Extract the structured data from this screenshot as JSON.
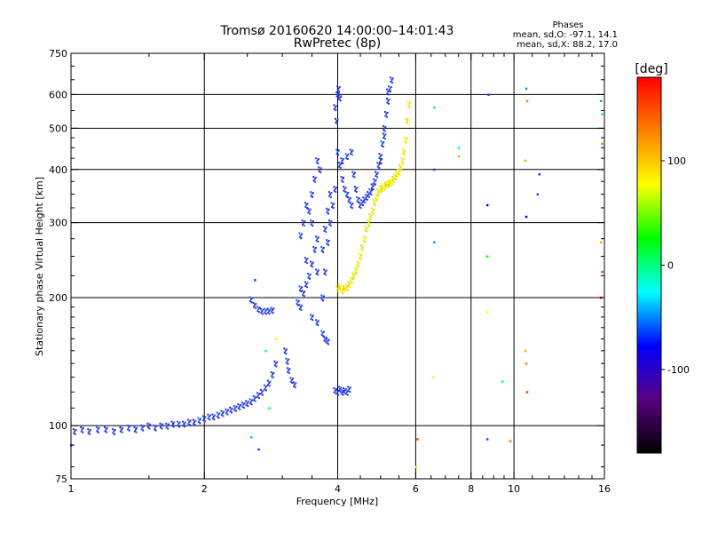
{
  "chart_data": {
    "type": "scatter",
    "title": "Tromsø 20160620 14:00:00–14:01:43",
    "subtitle": "RwPretec (8p)",
    "xlabel": "Frequency [MHz]",
    "ylabel": "Stationary phase Virtual Height [km]",
    "x_scale": "log",
    "y_scale": "log",
    "xlim": [
      1,
      16
    ],
    "ylim": [
      75,
      750
    ],
    "xticks": [
      1,
      2,
      4,
      6,
      8,
      10,
      16
    ],
    "yticks": [
      75,
      100,
      200,
      300,
      400,
      500,
      600,
      750
    ],
    "grid": true,
    "info": {
      "heading": "Phases",
      "line1": "mean, sd,O: -97.1, 14.1",
      "line2": "mean, sd,X:  88.2, 17.0"
    },
    "colorbar": {
      "label": "[deg]",
      "range": [
        -180,
        180
      ],
      "ticks": [
        100,
        0,
        -100
      ],
      "tick_labels": [
        "100",
        "0",
        "-100"
      ],
      "colors": [
        "#000000",
        "#5a0082",
        "#0000ff",
        "#00ffff",
        "#00ff00",
        "#ffff00",
        "#ff8000",
        "#ff0000"
      ]
    },
    "series": [
      {
        "mode": "O",
        "color": "#1a2fe0",
        "points": [
          [
            1.02,
            97
          ],
          [
            1.06,
            98
          ],
          [
            1.1,
            97
          ],
          [
            1.15,
            98
          ],
          [
            1.2,
            98
          ],
          [
            1.25,
            97
          ],
          [
            1.3,
            98
          ],
          [
            1.35,
            99
          ],
          [
            1.4,
            98
          ],
          [
            1.45,
            99
          ],
          [
            1.5,
            100
          ],
          [
            1.55,
            99
          ],
          [
            1.6,
            100
          ],
          [
            1.65,
            100
          ],
          [
            1.7,
            101
          ],
          [
            1.75,
            101
          ],
          [
            1.8,
            101
          ],
          [
            1.85,
            102
          ],
          [
            1.9,
            102
          ],
          [
            1.95,
            103
          ],
          [
            2.0,
            104
          ],
          [
            2.05,
            105
          ],
          [
            2.1,
            105
          ],
          [
            2.15,
            106
          ],
          [
            2.2,
            107
          ],
          [
            2.25,
            108
          ],
          [
            2.3,
            109
          ],
          [
            2.35,
            110
          ],
          [
            2.4,
            111
          ],
          [
            2.45,
            112
          ],
          [
            2.5,
            113
          ],
          [
            2.55,
            114
          ],
          [
            2.6,
            116
          ],
          [
            2.65,
            118
          ],
          [
            2.7,
            120
          ],
          [
            2.75,
            123
          ],
          [
            2.8,
            126
          ],
          [
            2.85,
            132
          ],
          [
            2.9,
            140
          ],
          [
            2.55,
            198
          ],
          [
            2.6,
            192
          ],
          [
            2.65,
            188
          ],
          [
            2.7,
            186
          ],
          [
            2.75,
            186
          ],
          [
            2.8,
            186
          ],
          [
            2.85,
            187
          ],
          [
            3.05,
            150
          ],
          [
            3.08,
            142
          ],
          [
            3.1,
            135
          ],
          [
            3.15,
            128
          ],
          [
            3.2,
            125
          ],
          [
            3.25,
            195
          ],
          [
            3.3,
            190
          ],
          [
            3.35,
            205
          ],
          [
            3.4,
            215
          ],
          [
            3.45,
            225
          ],
          [
            3.5,
            240
          ],
          [
            3.55,
            260
          ],
          [
            3.6,
            275
          ],
          [
            3.3,
            280
          ],
          [
            3.35,
            300
          ],
          [
            3.4,
            330
          ],
          [
            3.45,
            320
          ],
          [
            3.5,
            350
          ],
          [
            3.55,
            380
          ],
          [
            3.6,
            420
          ],
          [
            3.65,
            400
          ],
          [
            3.3,
            210
          ],
          [
            3.4,
            245
          ],
          [
            3.5,
            300
          ],
          [
            3.6,
            230
          ],
          [
            3.7,
            260
          ],
          [
            3.75,
            290
          ],
          [
            3.8,
            320
          ],
          [
            3.85,
            350
          ],
          [
            3.7,
            200
          ],
          [
            3.75,
            230
          ],
          [
            3.8,
            270
          ],
          [
            3.85,
            300
          ],
          [
            3.9,
            330
          ],
          [
            3.95,
            360
          ],
          [
            3.5,
            180
          ],
          [
            3.6,
            175
          ],
          [
            3.7,
            165
          ],
          [
            3.75,
            160
          ],
          [
            3.8,
            158
          ],
          [
            3.95,
            560
          ],
          [
            4.0,
            600
          ],
          [
            4.02,
            620
          ],
          [
            4.05,
            590
          ],
          [
            3.98,
            520
          ],
          [
            4.0,
            440
          ],
          [
            4.05,
            410
          ],
          [
            4.1,
            380
          ],
          [
            4.15,
            360
          ],
          [
            4.2,
            350
          ],
          [
            4.25,
            340
          ],
          [
            4.3,
            330
          ],
          [
            4.1,
            420
          ],
          [
            4.2,
            430
          ],
          [
            4.3,
            440
          ],
          [
            4.35,
            390
          ],
          [
            4.4,
            360
          ],
          [
            4.45,
            340
          ],
          [
            4.5,
            330
          ],
          [
            4.55,
            335
          ],
          [
            4.6,
            340
          ],
          [
            4.65,
            345
          ],
          [
            4.7,
            350
          ],
          [
            4.75,
            355
          ],
          [
            4.8,
            365
          ],
          [
            4.85,
            375
          ],
          [
            4.9,
            390
          ],
          [
            4.95,
            410
          ],
          [
            5.0,
            430
          ],
          [
            5.05,
            460
          ],
          [
            5.1,
            500
          ],
          [
            5.15,
            540
          ],
          [
            5.2,
            580
          ],
          [
            5.25,
            620
          ],
          [
            5.3,
            650
          ],
          [
            5.2,
            610
          ],
          [
            5.1,
            480
          ],
          [
            5.0,
            420
          ],
          [
            3.95,
            121
          ],
          [
            4.0,
            120
          ],
          [
            4.05,
            122
          ],
          [
            4.1,
            120
          ],
          [
            4.15,
            121
          ],
          [
            4.2,
            120
          ],
          [
            4.25,
            122
          ]
        ]
      },
      {
        "mode": "X",
        "color": "#f0ef10",
        "points": [
          [
            4.0,
            210
          ],
          [
            4.05,
            212
          ],
          [
            4.1,
            208
          ],
          [
            4.15,
            210
          ],
          [
            4.2,
            212
          ],
          [
            4.25,
            215
          ],
          [
            4.3,
            220
          ],
          [
            4.35,
            225
          ],
          [
            4.4,
            232
          ],
          [
            4.45,
            240
          ],
          [
            4.5,
            250
          ],
          [
            4.55,
            262
          ],
          [
            4.6,
            275
          ],
          [
            4.65,
            290
          ],
          [
            4.7,
            300
          ],
          [
            4.75,
            310
          ],
          [
            4.8,
            320
          ],
          [
            4.85,
            335
          ],
          [
            4.9,
            345
          ],
          [
            4.95,
            355
          ],
          [
            5.0,
            360
          ],
          [
            5.05,
            362
          ],
          [
            5.1,
            365
          ],
          [
            5.15,
            368
          ],
          [
            5.2,
            370
          ],
          [
            5.25,
            372
          ],
          [
            5.3,
            375
          ],
          [
            5.35,
            380
          ],
          [
            5.4,
            385
          ],
          [
            5.45,
            390
          ],
          [
            5.5,
            395
          ],
          [
            5.55,
            405
          ],
          [
            5.6,
            420
          ],
          [
            5.65,
            440
          ],
          [
            5.7,
            470
          ],
          [
            5.75,
            520
          ],
          [
            5.8,
            570
          ]
        ]
      }
    ],
    "scatter_points": [
      [
        1.0,
        90,
        "#3030ff"
      ],
      [
        2.55,
        94,
        "#00c0ff"
      ],
      [
        2.65,
        88,
        "#3030ff"
      ],
      [
        2.75,
        150,
        "#00ffd0"
      ],
      [
        2.8,
        110,
        "#00ff60"
      ],
      [
        2.9,
        160,
        "#ffee00"
      ],
      [
        2.6,
        220,
        "#0040ff"
      ],
      [
        6.0,
        80,
        "#ffee00"
      ],
      [
        6.05,
        93,
        "#ff4000"
      ],
      [
        6.55,
        130,
        "#ffff00"
      ],
      [
        6.6,
        270,
        "#00a0ff"
      ],
      [
        6.6,
        400,
        "#0040ff"
      ],
      [
        6.6,
        560,
        "#00e0ff"
      ],
      [
        7.5,
        450,
        "#00ffff"
      ],
      [
        7.5,
        430,
        "#ffaa00"
      ],
      [
        8.7,
        93,
        "#2040ff"
      ],
      [
        8.7,
        185,
        "#ffff00"
      ],
      [
        8.7,
        250,
        "#00ff00"
      ],
      [
        8.7,
        330,
        "#0000ff"
      ],
      [
        8.75,
        600,
        "#2040ff"
      ],
      [
        9.8,
        92,
        "#ff8000"
      ],
      [
        10.6,
        150,
        "#ffaa00"
      ],
      [
        10.65,
        140,
        "#ff8000"
      ],
      [
        10.7,
        120,
        "#ff4000"
      ],
      [
        10.65,
        310,
        "#0000ff"
      ],
      [
        10.6,
        420,
        "#ffaa00"
      ],
      [
        10.7,
        580,
        "#ff8000"
      ],
      [
        10.65,
        620,
        "#00a0ff"
      ],
      [
        11.3,
        350,
        "#3030ff"
      ],
      [
        11.4,
        390,
        "#3030ff"
      ],
      [
        9.4,
        127,
        "#00ff80"
      ],
      [
        15.7,
        200,
        "#ff0000"
      ],
      [
        15.8,
        230,
        "#ff4000"
      ],
      [
        15.7,
        270,
        "#ffaa00"
      ],
      [
        15.8,
        400,
        "#ffaa00"
      ],
      [
        15.8,
        460,
        "#ff8000"
      ],
      [
        15.8,
        540,
        "#00e0ff"
      ],
      [
        15.7,
        580,
        "#00a0ff"
      ]
    ]
  }
}
